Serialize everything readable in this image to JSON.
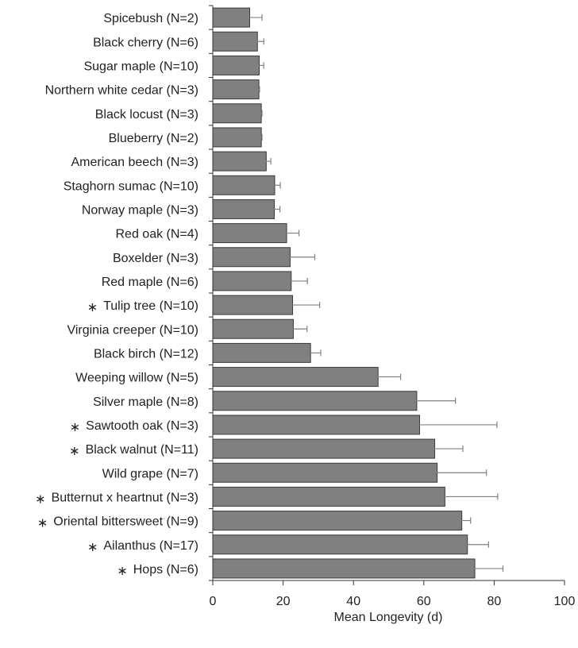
{
  "chart_data": {
    "type": "bar",
    "orientation": "horizontal",
    "xlabel": "Mean Longevity (d)",
    "xlim": [
      0,
      100
    ],
    "xticks": [
      0,
      20,
      40,
      60,
      80,
      100
    ],
    "grid": false,
    "bar_color": "#808080",
    "bar_edge_color": "#3a3a3a",
    "error_bar_color": "#808080",
    "categories": [
      "Spicebush (N=2)",
      "Black cherry (N=6)",
      "Sugar maple (N=10)",
      "Northern white cedar (N=3)",
      "Black locust (N=3)",
      "Blueberry (N=2)",
      "American beech (N=3)",
      "Staghorn sumac (N=10)",
      "Norway maple (N=3)",
      "Red oak (N=4)",
      "Boxelder (N=3)",
      "Red maple (N=6)",
      "Tulip tree (N=10)",
      "Virginia creeper (N=10)",
      "Black birch (N=12)",
      "Weeping willow (N=5)",
      "Silver maple (N=8)",
      "Sawtooth oak (N=3)",
      "Black walnut (N=11)",
      "Wild grape (N=7)",
      "Butternut x heartnut (N=3)",
      "Oriental bittersweet (N=9)",
      "Ailanthus (N=17)",
      "Hops (N=6)"
    ],
    "starred": [
      false,
      false,
      false,
      false,
      false,
      false,
      false,
      false,
      false,
      false,
      false,
      false,
      true,
      false,
      false,
      false,
      false,
      true,
      true,
      false,
      true,
      true,
      true,
      true
    ],
    "star_symbol": "∗",
    "values": [
      10.5,
      12.7,
      13.2,
      13.1,
      13.8,
      13.8,
      15.2,
      17.6,
      17.5,
      21.0,
      22.0,
      22.3,
      22.7,
      22.9,
      27.8,
      47.0,
      58.0,
      58.8,
      63.1,
      63.8,
      66.0,
      70.8,
      72.4,
      74.5
    ],
    "errors": [
      3.5,
      1.8,
      1.3,
      0.2,
      0.2,
      0.2,
      1.3,
      1.6,
      1.6,
      3.5,
      7.0,
      4.6,
      7.7,
      3.9,
      2.9,
      6.4,
      11.0,
      22.0,
      8.0,
      14.0,
      15.0,
      2.5,
      6.0,
      8.0
    ]
  }
}
